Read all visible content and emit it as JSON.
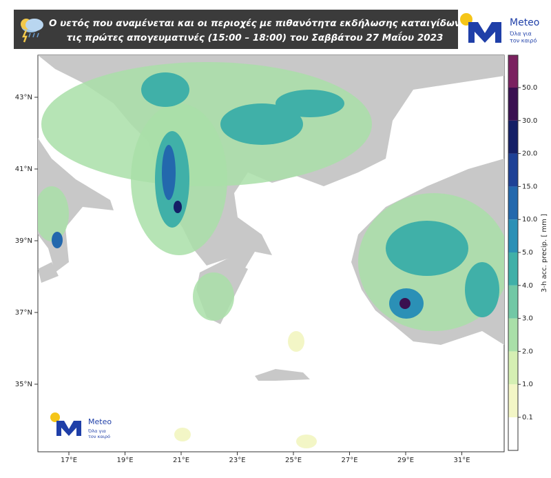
{
  "header": {
    "title_lines": [
      "Ο υετός που αναμένεται και οι περιοχές με πιθανότητα εκδήλωσης καταιγίδων",
      "τις πρώτες απογευματινές (15:00 – 18:00) του Σαββάτου 27 Μαΐου 2023"
    ],
    "logo": {
      "name": "Meteo",
      "tagline": [
        "Όλα για",
        "τον καιρό"
      ]
    }
  },
  "map": {
    "lat_labels": [
      "43°N",
      "41°N",
      "39°N",
      "37°N",
      "35°N"
    ],
    "lon_labels": [
      "17°E",
      "19°E",
      "21°E",
      "23°E",
      "25°E",
      "27°E",
      "29°E",
      "31°E"
    ]
  },
  "colorbar": {
    "label": "3-h acc. precip. [ mm ]",
    "ticks": [
      {
        "value": 0.1,
        "label": "0.1"
      },
      {
        "value": 1,
        "label": "1.0"
      },
      {
        "value": 2,
        "label": "2.0"
      },
      {
        "value": 3,
        "label": "3.0"
      },
      {
        "value": 4,
        "label": "4.0"
      },
      {
        "value": 5,
        "label": "5.0"
      },
      {
        "value": 10,
        "label": "10.0"
      },
      {
        "value": 15,
        "label": "15.0"
      },
      {
        "value": 20,
        "label": "20.0"
      },
      {
        "value": 30,
        "label": "30.0"
      },
      {
        "value": 50,
        "label": "50.0"
      }
    ],
    "colors": [
      "#ffffff",
      "#f3f6c6",
      "#d5efb3",
      "#a9dfa8",
      "#72c8a5",
      "#40b0a8",
      "#2b90b6",
      "#2368ad",
      "#1e4196",
      "#141f66",
      "#3a1050",
      "#7b2260"
    ]
  }
}
